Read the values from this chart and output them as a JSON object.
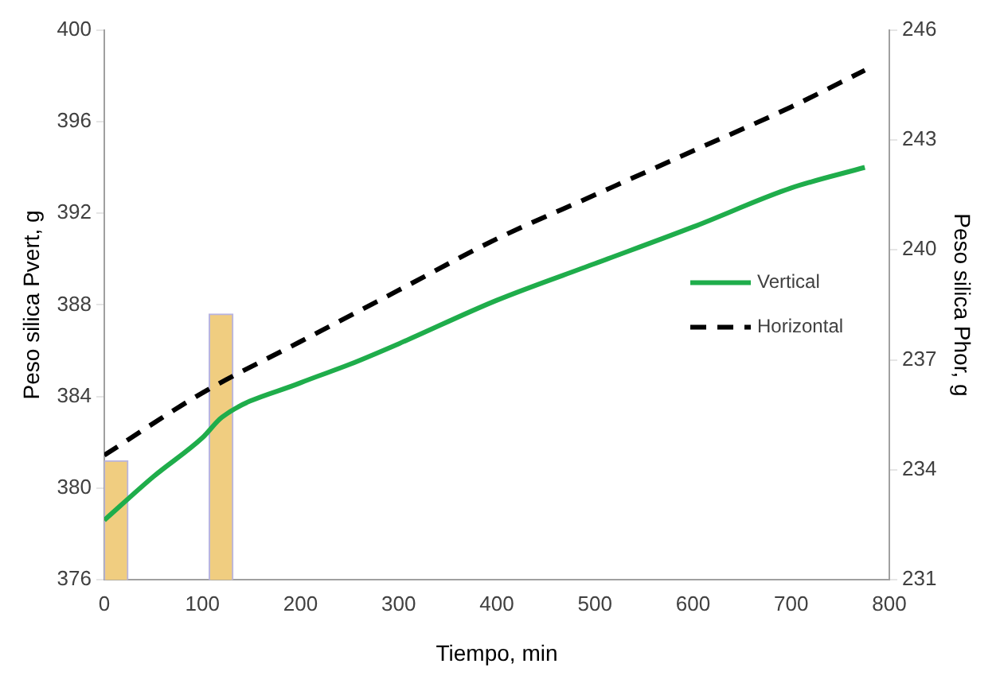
{
  "chart_data": {
    "type": "line",
    "xlabel": "Tiempo, min",
    "ylabel": "Peso silica Pvert, g",
    "y2label": "Peso silica Phor, g",
    "xlim": [
      0,
      800
    ],
    "xticks": [
      0,
      100,
      200,
      300,
      400,
      500,
      600,
      700,
      800
    ],
    "ylim": [
      376,
      400
    ],
    "yticks": [
      376,
      380,
      384,
      388,
      392,
      396,
      400
    ],
    "y2lim": [
      231,
      246
    ],
    "y2ticks": [
      231,
      234,
      237,
      240,
      243,
      246
    ],
    "grid": false,
    "legend": "right",
    "marker": "none",
    "series": [
      {
        "type": "bar",
        "color": "#f0cd80",
        "x": [
          12,
          119
        ],
        "values": [
          381.2,
          387.6
        ]
      },
      {
        "name": "Vertical",
        "color": "#1fad4b",
        "line_style": "solid",
        "x": [
          0,
          50,
          100,
          120,
          200,
          250,
          300,
          400,
          500,
          600,
          700,
          775
        ],
        "values": [
          378.6,
          380.5,
          382.2,
          383.1,
          384.6,
          385.4,
          386.3,
          388.2,
          389.8,
          391.4,
          393.1,
          394.0
        ]
      },
      {
        "name": "Horizontal",
        "color": "#000000",
        "line_style": "dashed",
        "axis": "y2",
        "x": [
          0,
          100,
          200,
          300,
          400,
          500,
          600,
          700,
          775
        ],
        "values": [
          234.4,
          236.1,
          237.5,
          238.9,
          240.3,
          241.5,
          242.7,
          243.9,
          244.9
        ]
      }
    ]
  }
}
